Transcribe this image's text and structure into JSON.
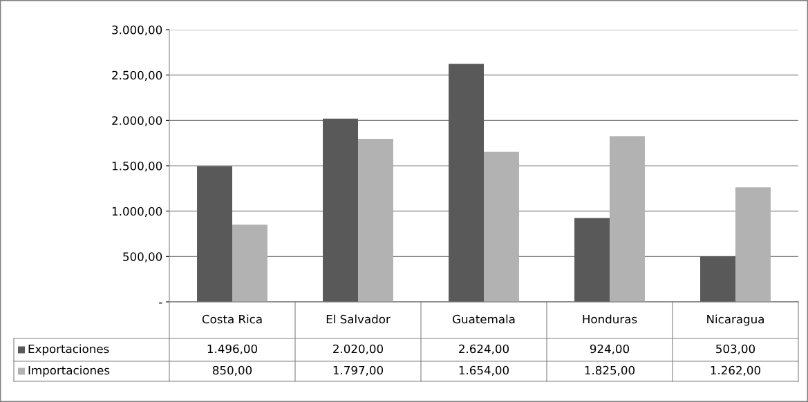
{
  "chart_data": {
    "type": "bar",
    "categories": [
      "Costa Rica",
      "El Salvador",
      "Guatemala",
      "Honduras",
      "Nicaragua"
    ],
    "series": [
      {
        "name": "Exportaciones",
        "color": "#595959",
        "values": [
          1496,
          2020,
          2624,
          924,
          503
        ],
        "value_labels": [
          "1.496,00",
          "2.020,00",
          "2.624,00",
          "924,00",
          "503,00"
        ]
      },
      {
        "name": "Importaciones",
        "color": "#b2b2b2",
        "values": [
          850,
          1797,
          1654,
          1825,
          1262
        ],
        "value_labels": [
          "850,00",
          "1.797,00",
          "1.654,00",
          "1.825,00",
          "1.262,00"
        ]
      }
    ],
    "ylim": [
      0,
      3000
    ],
    "yticks": [
      {
        "value": 0,
        "label": "-"
      },
      {
        "value": 500,
        "label": "500,00"
      },
      {
        "value": 1000,
        "label": "1.000,00"
      },
      {
        "value": 1500,
        "label": "1.500,00"
      },
      {
        "value": 2000,
        "label": "2.000,00"
      },
      {
        "value": 2500,
        "label": "2.500,00"
      },
      {
        "value": 3000,
        "label": "3.000,00"
      }
    ],
    "grid": "y",
    "legend": "bottom"
  }
}
